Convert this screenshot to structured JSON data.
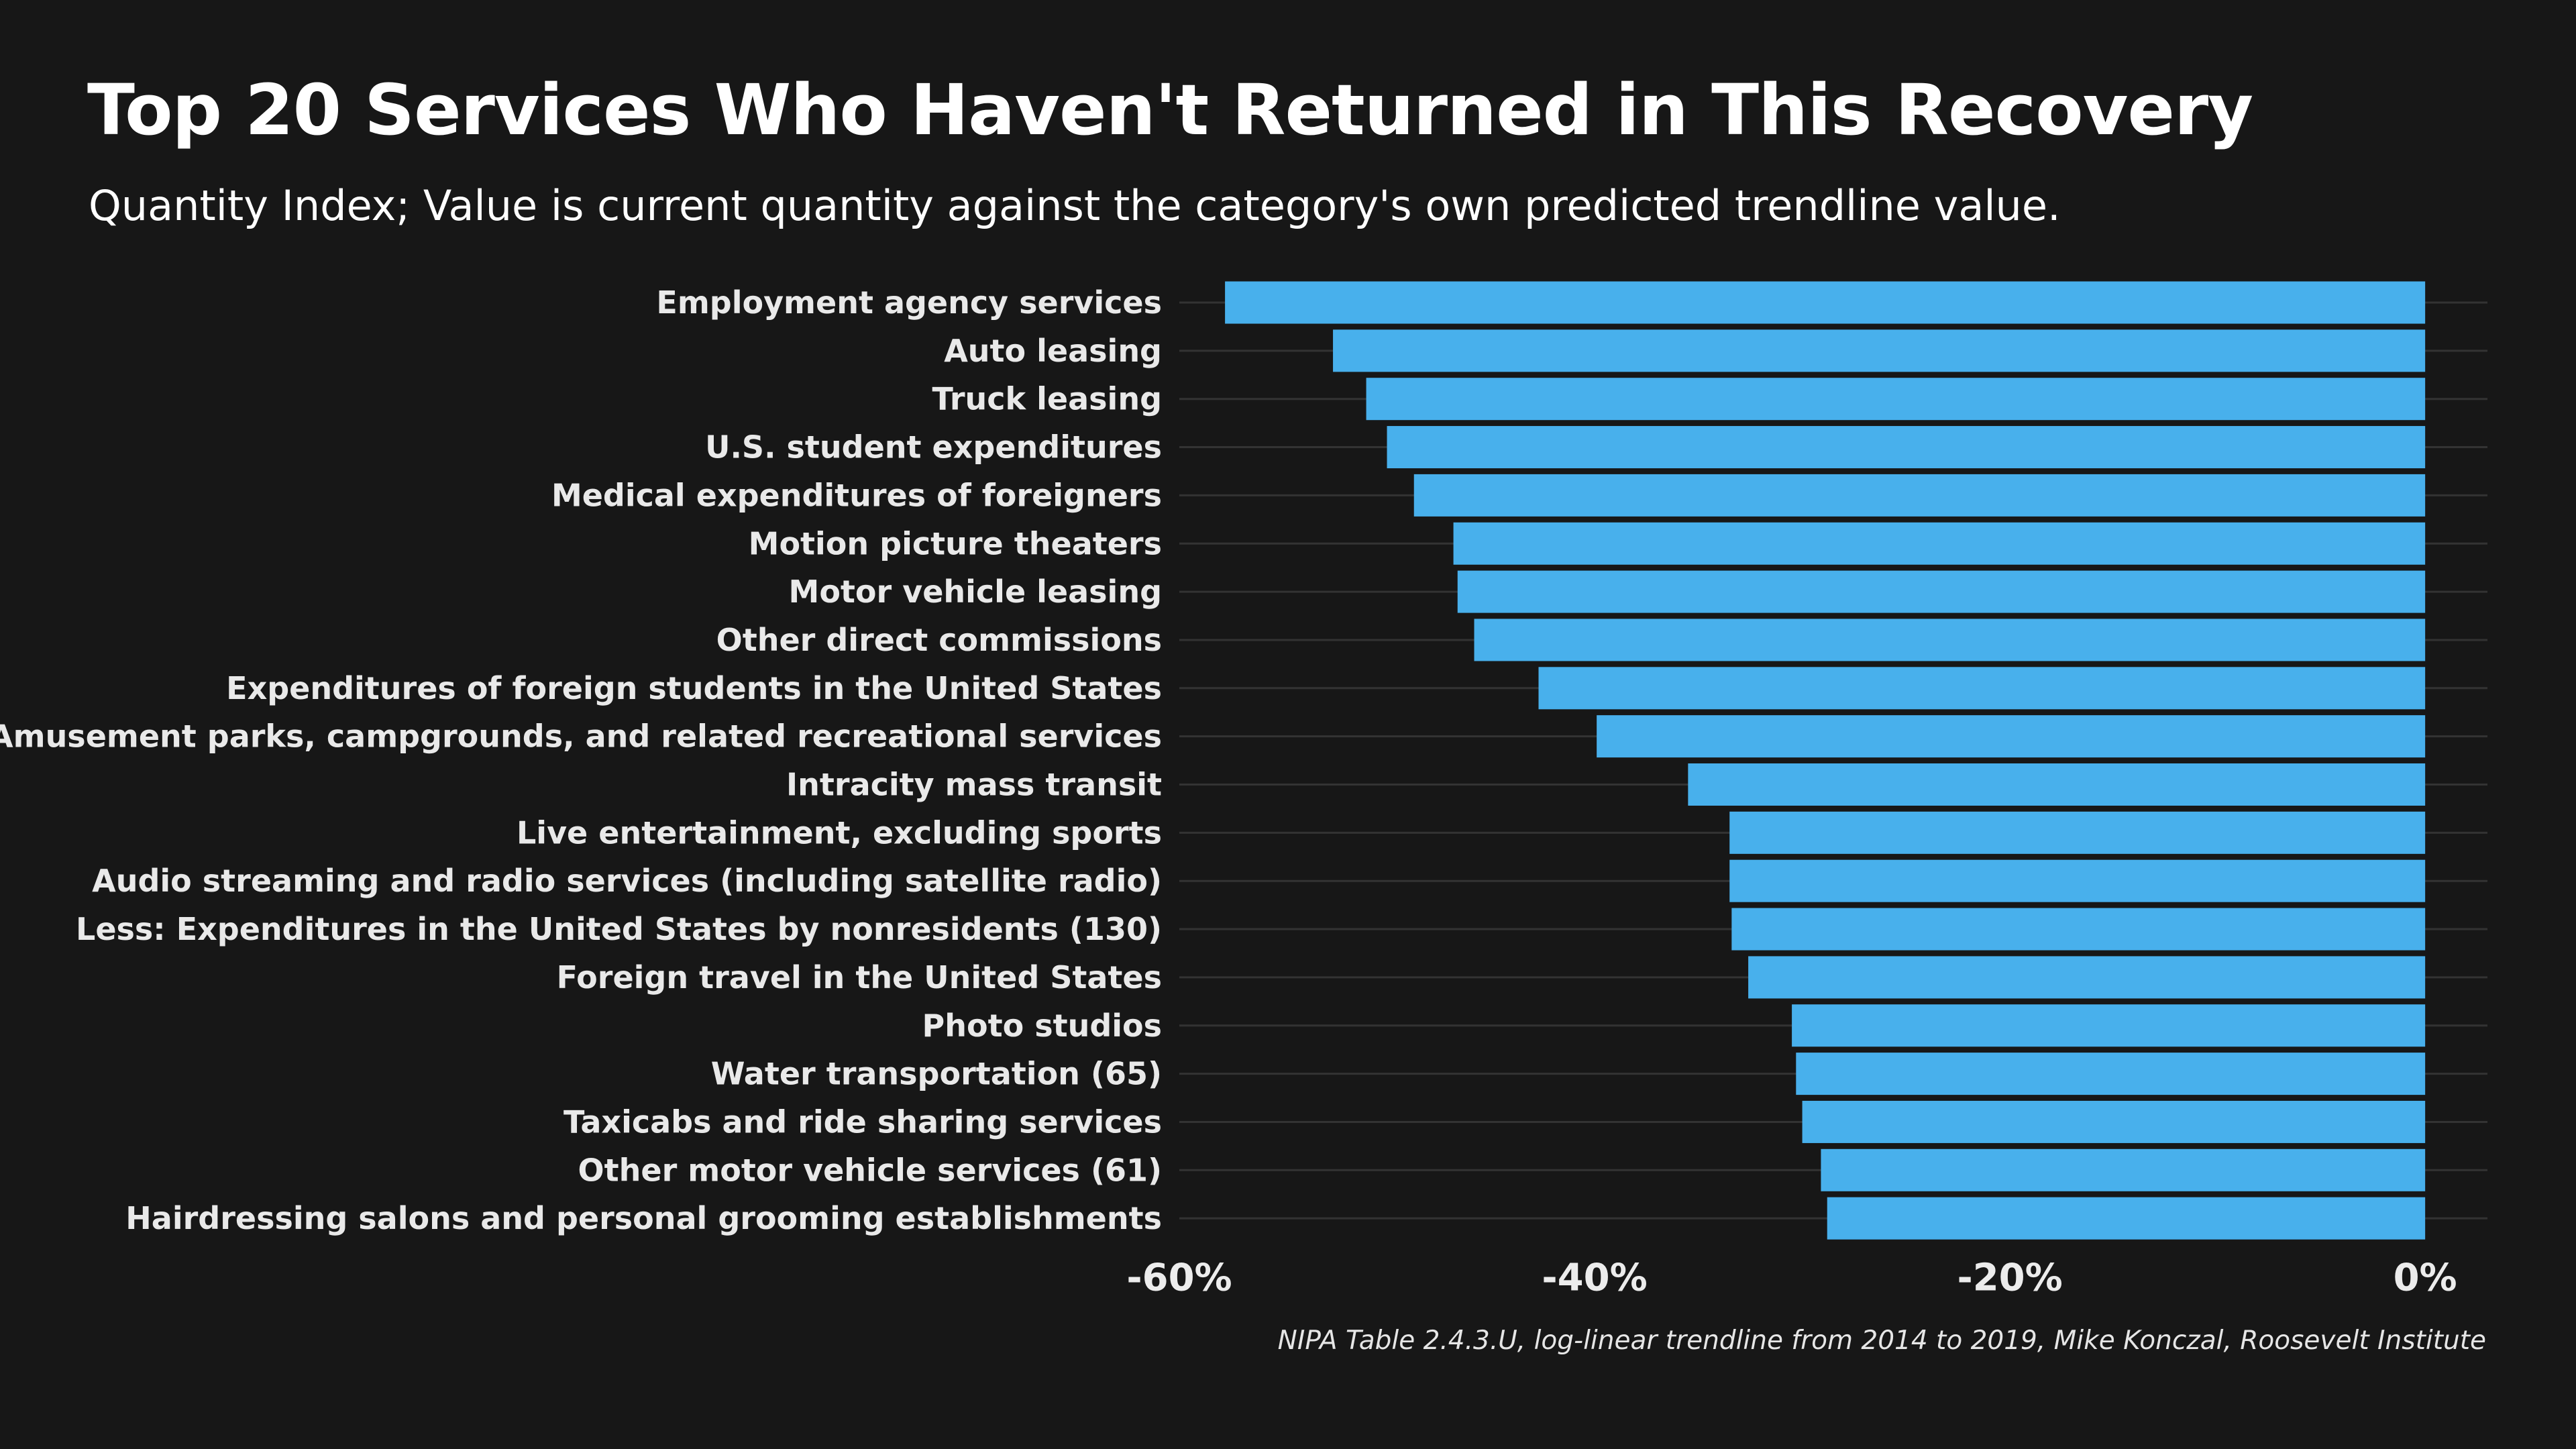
{
  "chart_data": {
    "type": "bar",
    "orientation": "horizontal",
    "title": "Top 20 Services Who Haven't Returned in This Recovery",
    "subtitle": "Quantity Index; Value is current quantity against the category's own predicted trendline value.",
    "caption": "NIPA Table 2.4.3.U, log-linear trendline from 2014 to 2019, Mike Konczal, Roosevelt Institute",
    "categories": [
      "Employment agency services",
      "Auto leasing",
      "Truck leasing",
      "U.S. student expenditures",
      "Medical expenditures of foreigners",
      "Motion picture theaters",
      "Motor vehicle leasing",
      "Other direct commissions",
      "Expenditures of foreign students in the United States",
      "Amusement parks, campgrounds, and related recreational services",
      "Intracity mass transit",
      "Live entertainment, excluding sports",
      "Audio streaming and radio services (including satellite radio)",
      "Less: Expenditures in the United States by nonresidents (130)",
      "Foreign travel in the United States",
      "Photo studios",
      "Water transportation (65)",
      "Taxicabs and ride sharing services",
      "Other motor vehicle services (61)",
      "Hairdressing salons and personal grooming establishments"
    ],
    "values": [
      -57.8,
      -52.6,
      -51.0,
      -50.0,
      -48.7,
      -46.8,
      -46.6,
      -45.8,
      -42.7,
      -39.9,
      -35.5,
      -33.5,
      -33.5,
      -33.4,
      -32.6,
      -30.5,
      -30.3,
      -30.0,
      -29.1,
      -28.8
    ],
    "unit": "%",
    "xlim": [
      -60,
      3
    ],
    "xticks": [
      -60,
      -40,
      -20,
      0
    ],
    "xtick_labels": [
      "-60%",
      "-40%",
      "-20%",
      "0%"
    ],
    "xlabel": "",
    "ylabel": "",
    "grid": "horizontal gridlines at each category",
    "legend": "none",
    "colors": {
      "background": "#171717",
      "bar": "#48b0ec",
      "grid": "#333333",
      "text": "#ffffff"
    }
  }
}
